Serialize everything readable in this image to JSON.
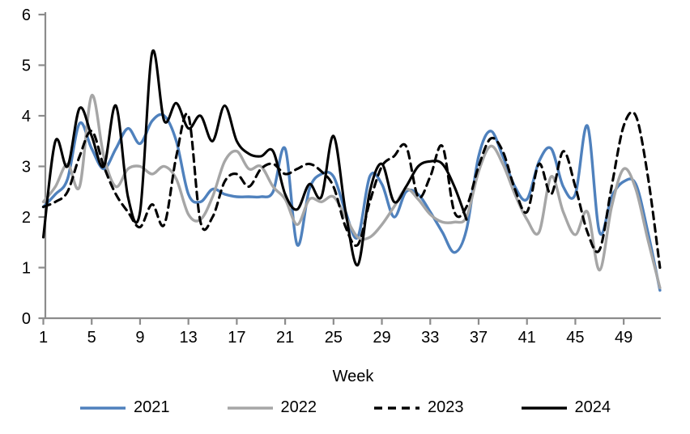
{
  "chart_data": {
    "type": "line",
    "title": "",
    "xlabel": "Week",
    "ylabel": "",
    "xlim": [
      1,
      52
    ],
    "ylim": [
      0,
      6
    ],
    "x_ticks": [
      1,
      5,
      9,
      13,
      17,
      21,
      25,
      29,
      33,
      37,
      41,
      45,
      49
    ],
    "y_ticks": [
      0,
      1,
      2,
      3,
      4,
      5,
      6
    ],
    "grid": "off",
    "smooth_lines": true,
    "legend_position": "bottom",
    "axis_color": "#8C8C8C",
    "x_unit": "week_of_year",
    "series": [
      {
        "name": "2021",
        "color": "#4F81BD",
        "style": "solid",
        "start_week": 1,
        "values": [
          2.2,
          2.45,
          2.75,
          3.85,
          3.35,
          2.95,
          3.35,
          3.75,
          3.45,
          3.9,
          4.0,
          3.5,
          2.45,
          2.3,
          2.55,
          2.45,
          2.4,
          2.4,
          2.4,
          2.5,
          3.35,
          1.45,
          2.55,
          2.85,
          2.8,
          2.1,
          1.6,
          2.8,
          2.65,
          2.0,
          2.5,
          2.45,
          2.1,
          1.7,
          1.3,
          1.75,
          3.2,
          3.7,
          3.2,
          2.6,
          2.35,
          3.1,
          3.35,
          2.6,
          2.45,
          3.8,
          1.7,
          2.4,
          2.7,
          2.65,
          1.7,
          0.55
        ]
      },
      {
        "name": "2022",
        "color": "#A6A6A6",
        "style": "solid",
        "start_week": 1,
        "values": [
          2.3,
          2.6,
          3.05,
          2.6,
          4.4,
          3.2,
          2.6,
          2.95,
          3.0,
          2.85,
          3.0,
          2.75,
          2.05,
          1.95,
          2.4,
          3.1,
          3.3,
          2.95,
          3.0,
          2.6,
          2.35,
          1.85,
          2.35,
          2.3,
          2.4,
          2.0,
          1.6,
          1.6,
          1.85,
          2.2,
          2.55,
          2.35,
          2.05,
          1.9,
          1.9,
          2.0,
          2.9,
          3.4,
          3.05,
          2.45,
          1.95,
          1.7,
          2.8,
          2.1,
          1.65,
          2.1,
          0.95,
          2.2,
          2.95,
          2.55,
          1.55,
          0.6
        ]
      },
      {
        "name": "2023",
        "color": "#000000",
        "style": "dashed",
        "start_week": 1,
        "values": [
          2.2,
          2.3,
          2.5,
          3.2,
          3.7,
          3.0,
          2.45,
          2.1,
          1.8,
          2.25,
          1.85,
          3.2,
          4.0,
          1.9,
          2.0,
          2.7,
          2.85,
          2.6,
          2.95,
          3.05,
          2.85,
          2.95,
          3.05,
          2.9,
          2.6,
          1.8,
          1.45,
          2.3,
          3.0,
          3.2,
          3.4,
          2.4,
          2.8,
          3.4,
          2.1,
          2.2,
          3.0,
          3.55,
          3.3,
          2.55,
          2.1,
          3.05,
          2.45,
          3.3,
          2.6,
          1.7,
          1.35,
          2.6,
          3.8,
          4.0,
          2.8,
          1.0
        ]
      },
      {
        "name": "2024",
        "color": "#000000",
        "style": "solid",
        "start_week": 1,
        "values": [
          1.6,
          3.5,
          3.0,
          4.15,
          3.6,
          3.0,
          4.2,
          2.4,
          2.1,
          5.25,
          3.9,
          4.25,
          3.75,
          4.0,
          3.5,
          4.2,
          3.5,
          3.25,
          3.2,
          3.3,
          2.45,
          2.15,
          2.65,
          2.4,
          3.6,
          2.1,
          1.05,
          2.5,
          3.05,
          2.3,
          2.6,
          3.0,
          3.1,
          3.05,
          2.6,
          1.95
        ]
      }
    ]
  }
}
